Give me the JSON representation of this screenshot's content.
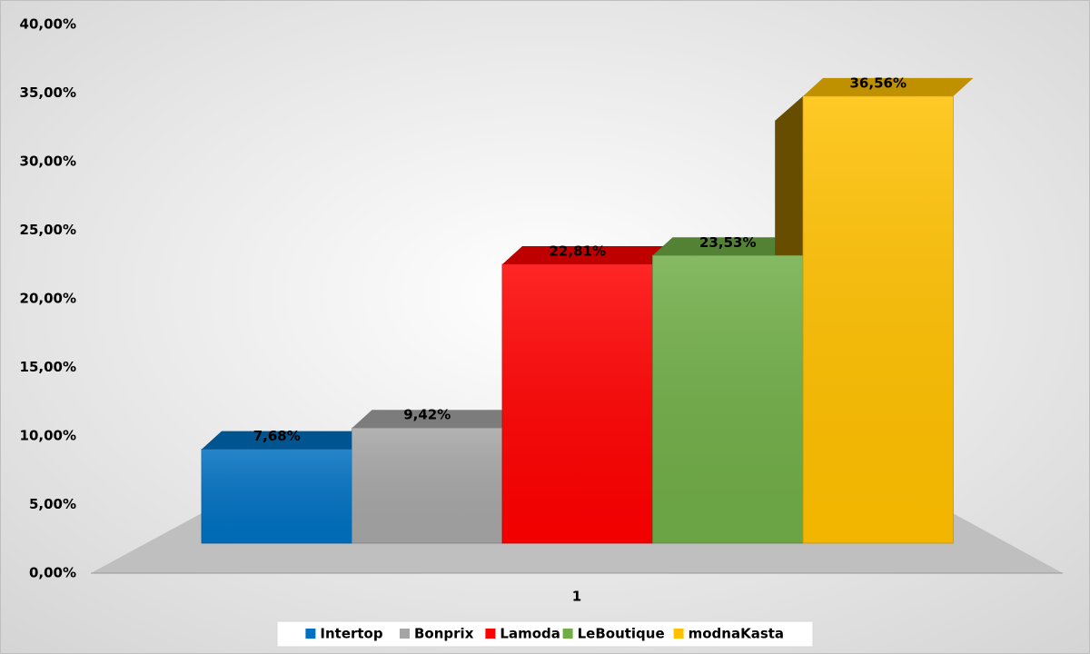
{
  "chart_data": {
    "type": "bar3d",
    "categories": [
      "1"
    ],
    "series": [
      {
        "name": "Intertop",
        "color": "#0070c0",
        "values": [
          7.68
        ],
        "value_labels": [
          "7,68%"
        ]
      },
      {
        "name": "Bonprix",
        "color": "#a5a5a5",
        "values": [
          9.42
        ],
        "value_labels": [
          "9,42%"
        ]
      },
      {
        "name": "Lamoda",
        "color": "#ff0000",
        "values": [
          22.81
        ],
        "value_labels": [
          "22,81%"
        ]
      },
      {
        "name": "LeBoutique",
        "color": "#70ad47",
        "values": [
          23.53
        ],
        "value_labels": [
          "23,53%"
        ]
      },
      {
        "name": "modnaKasta",
        "color": "#ffc000",
        "values": [
          36.56
        ],
        "value_labels": [
          "36,56%"
        ]
      }
    ],
    "ylim": [
      0,
      40
    ],
    "yticks": [
      {
        "value": 0,
        "label": "0,00%"
      },
      {
        "value": 5,
        "label": "5,00%"
      },
      {
        "value": 10,
        "label": "10,00%"
      },
      {
        "value": 15,
        "label": "15,00%"
      },
      {
        "value": 20,
        "label": "20,00%"
      },
      {
        "value": 25,
        "label": "25,00%"
      },
      {
        "value": 30,
        "label": "30,00%"
      },
      {
        "value": 35,
        "label": "35,00%"
      },
      {
        "value": 40,
        "label": "40,00%"
      }
    ],
    "legend": "bottom"
  }
}
